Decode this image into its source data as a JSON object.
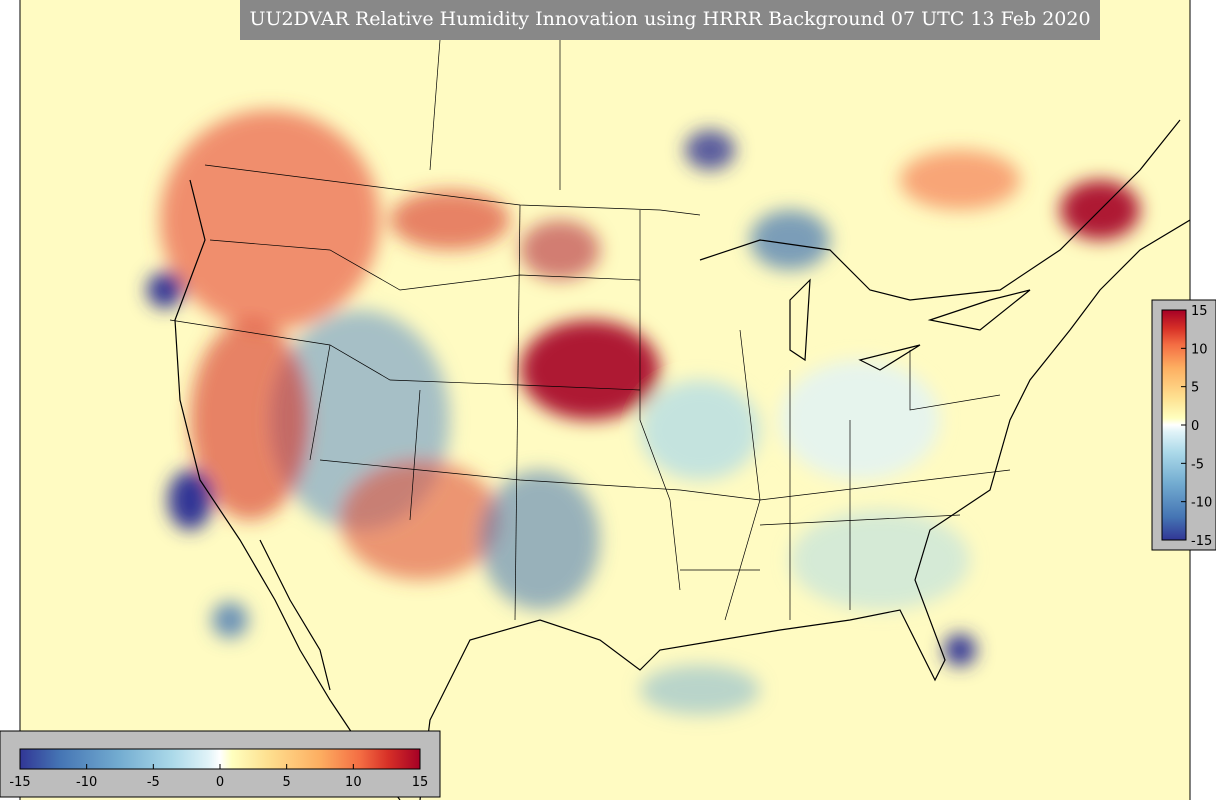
{
  "title": "UU2DVAR Relative Humidity Innovation using HRRR Background 07 UTC 13 Feb 2020",
  "colorbar": {
    "lim": [
      -15,
      15
    ],
    "ticks": [
      -15,
      -10,
      -5,
      0,
      5,
      10,
      15
    ]
  }
}
